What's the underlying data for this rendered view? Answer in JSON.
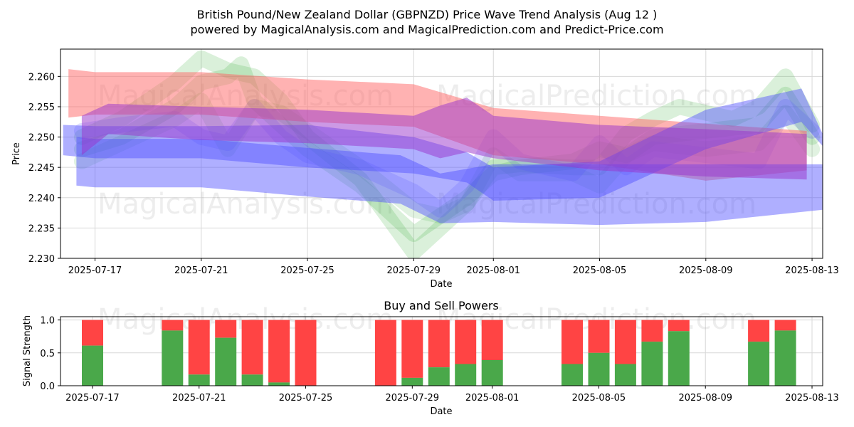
{
  "figure": {
    "title_line1": "British Pound/New Zealand Dollar (GBPNZD) Price Wave Trend Analysis (Aug 12 )",
    "title_line2": "powered by MagicalAnalysis.com and MagicalPrediction.com and Predict-Price.com",
    "watermarks": [
      "MagicalAnalysis.com",
      "MagicalPrediction.com"
    ]
  },
  "chart_data": [
    {
      "type": "area",
      "title": "",
      "xlabel": "Date",
      "ylabel": "Price",
      "x_ticks": [
        "2025-07-17",
        "2025-07-21",
        "2025-07-25",
        "2025-07-29",
        "2025-08-01",
        "2025-08-05",
        "2025-08-09",
        "2025-08-13"
      ],
      "x_tick_days": [
        2,
        6,
        10,
        14,
        17,
        21,
        25,
        29
      ],
      "xlim_days": [
        0.7,
        29.4
      ],
      "y_ticks": [
        "2.230",
        "2.235",
        "2.240",
        "2.245",
        "2.250",
        "2.255",
        "2.260"
      ],
      "y_tick_values": [
        2.23,
        2.235,
        2.24,
        2.245,
        2.25,
        2.255,
        2.26
      ],
      "ylim": [
        2.23,
        2.2645
      ],
      "grid": true,
      "note": "x values are days from 2025-07-15",
      "bands": [
        {
          "name": "red wave",
          "color": "#ff6666",
          "opacity": 0.5,
          "x": [
            1,
            2,
            6,
            10,
            14,
            17,
            21,
            25,
            28.8
          ],
          "upper": [
            2.2612,
            2.2607,
            2.2607,
            2.2595,
            2.2587,
            2.2548,
            2.2535,
            2.2522,
            2.251
          ],
          "lower": [
            2.2532,
            2.2537,
            2.2537,
            2.2525,
            2.2517,
            2.247,
            2.2455,
            2.2428,
            2.2445
          ]
        },
        {
          "name": "blue wave 1",
          "color": "#4d4dff",
          "opacity": 0.45,
          "x": [
            1.3,
            2,
            6,
            10,
            13.5,
            15,
            17,
            21,
            25,
            29.4
          ],
          "upper": [
            2.25,
            2.2497,
            2.2497,
            2.2482,
            2.247,
            2.244,
            2.2455,
            2.2455,
            2.2455,
            2.2455
          ],
          "lower": [
            2.242,
            2.2417,
            2.2417,
            2.2402,
            2.239,
            2.2358,
            2.236,
            2.2355,
            2.236,
            2.238
          ]
        },
        {
          "name": "blue wave 2",
          "color": "#4d4dff",
          "opacity": 0.45,
          "x": [
            0.8,
            2,
            6,
            10,
            14,
            16,
            17,
            21,
            25,
            28.6,
            29.4
          ],
          "upper": [
            2.252,
            2.2518,
            2.2518,
            2.252,
            2.25,
            2.2475,
            2.245,
            2.246,
            2.2545,
            2.258,
            2.2505
          ],
          "lower": [
            2.247,
            2.2465,
            2.2465,
            2.245,
            2.244,
            2.2425,
            2.2395,
            2.24,
            2.248,
            2.2525,
            2.2485
          ]
        },
        {
          "name": "purple wave",
          "color": "#9933cc",
          "opacity": 0.5,
          "x": [
            1.5,
            2.5,
            6,
            10,
            14,
            15,
            16,
            17,
            21,
            25,
            28.8
          ],
          "upper": [
            2.2535,
            2.2555,
            2.255,
            2.2545,
            2.2535,
            2.2552,
            2.2565,
            2.2535,
            2.252,
            2.2513,
            2.2505
          ],
          "lower": [
            2.247,
            2.2505,
            2.2495,
            2.249,
            2.248,
            2.2465,
            2.2475,
            2.2465,
            2.2445,
            2.2435,
            2.243
          ]
        }
      ],
      "series": [
        {
          "name": "green wave 1",
          "color": "#33aa33",
          "opacity": 0.18,
          "x": [
            1.5,
            3,
            5,
            6,
            7,
            8,
            9,
            10,
            12,
            14,
            15,
            16,
            17,
            18,
            20,
            21,
            22,
            23,
            24,
            26,
            27,
            28,
            29
          ],
          "values": [
            2.25,
            2.253,
            2.259,
            2.263,
            2.261,
            2.26,
            2.256,
            2.25,
            2.243,
            2.231,
            2.235,
            2.239,
            2.245,
            2.2455,
            2.245,
            2.245,
            2.2505,
            2.253,
            2.255,
            2.253,
            2.255,
            2.26,
            2.252
          ]
        },
        {
          "name": "green wave 2",
          "color": "#33aa33",
          "opacity": 0.18,
          "x": [
            1.5,
            3,
            5,
            6,
            7,
            7.5,
            8,
            9,
            10,
            12,
            14,
            15,
            16,
            17,
            18,
            20,
            21,
            22,
            23,
            25,
            27,
            28,
            29
          ],
          "values": [
            2.248,
            2.25,
            2.255,
            2.259,
            2.26,
            2.262,
            2.256,
            2.252,
            2.248,
            2.242,
            2.234,
            2.237,
            2.24,
            2.244,
            2.245,
            2.246,
            2.248,
            2.247,
            2.25,
            2.251,
            2.252,
            2.257,
            2.25
          ]
        },
        {
          "name": "green wave 3",
          "color": "#33aa33",
          "opacity": 0.15,
          "x": [
            1.5,
            3,
            5,
            6,
            7,
            8,
            9,
            10,
            12,
            14,
            15,
            16,
            17,
            18,
            20,
            21,
            22,
            23,
            25,
            27,
            28,
            29
          ],
          "values": [
            2.246,
            2.249,
            2.253,
            2.256,
            2.248,
            2.255,
            2.254,
            2.251,
            2.245,
            2.238,
            2.237,
            2.239,
            2.247,
            2.244,
            2.244,
            2.242,
            2.247,
            2.249,
            2.248,
            2.249,
            2.254,
            2.248
          ]
        },
        {
          "name": "blue wave 3",
          "color": "#4d4dff",
          "opacity": 0.18,
          "x": [
            1.5,
            3,
            5,
            6,
            7,
            8,
            9,
            10,
            12,
            14,
            15,
            16,
            17,
            18,
            20,
            21,
            22,
            23,
            25,
            27,
            28,
            29
          ],
          "values": [
            2.251,
            2.252,
            2.253,
            2.25,
            2.249,
            2.255,
            2.25,
            2.247,
            2.245,
            2.241,
            2.238,
            2.242,
            2.25,
            2.246,
            2.244,
            2.249,
            2.245,
            2.248,
            2.247,
            2.246,
            2.255,
            2.251
          ]
        }
      ],
      "watermark_text": [
        "MagicalAnalysis.com",
        "MagicalPrediction.com",
        "MagicalAnalysis.com",
        "MagicalPrediction.com"
      ]
    },
    {
      "type": "bar",
      "title": "Buy and Sell Powers",
      "xlabel": "Date",
      "ylabel": "Signal Strength",
      "x_ticks": [
        "2025-07-17",
        "2025-07-21",
        "2025-07-25",
        "2025-07-29",
        "2025-08-01",
        "2025-08-05",
        "2025-08-09",
        "2025-08-13"
      ],
      "x_tick_days": [
        2,
        6,
        10,
        14,
        17,
        21,
        25,
        29
      ],
      "xlim_days": [
        0.8,
        29.4
      ],
      "y_ticks": [
        "0.0",
        "0.5",
        "1.0"
      ],
      "y_tick_values": [
        0.0,
        0.5,
        1.0
      ],
      "ylim": [
        0,
        1.05
      ],
      "grid": true,
      "colors": {
        "buy": "#4aa84a",
        "sell": "#ff4444"
      },
      "days": [
        2,
        5,
        6,
        7,
        8,
        9,
        10,
        13,
        14,
        15,
        16,
        17,
        20,
        21,
        22,
        23,
        24,
        27,
        28
      ],
      "buy": [
        0.61,
        0.84,
        0.17,
        0.73,
        0.17,
        0.05,
        0.0,
        0.0,
        0.12,
        0.28,
        0.33,
        0.39,
        0.33,
        0.5,
        0.33,
        0.67,
        0.83,
        0.67,
        0.84
      ],
      "sell": [
        0.39,
        0.16,
        0.83,
        0.27,
        0.83,
        0.95,
        1.0,
        1.0,
        0.88,
        0.72,
        0.67,
        0.61,
        0.67,
        0.5,
        0.67,
        0.33,
        0.17,
        0.33,
        0.16
      ],
      "watermark_text": [
        "MagicalAnalysis.com",
        "MagicalPrediction.com"
      ]
    }
  ]
}
